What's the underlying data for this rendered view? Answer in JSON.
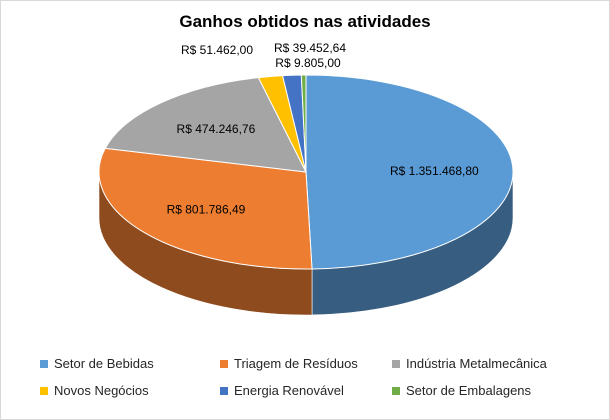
{
  "chart_data": {
    "type": "pie",
    "title": "Ganhos obtidos nas atividades",
    "legend_position": "bottom",
    "slices": [
      {
        "name": "Setor de Bebidas",
        "value": 1351468.8,
        "label": "R$ 1.351.468,80",
        "color": "#5b9bd5"
      },
      {
        "name": "Triagem de Resíduos",
        "value": 801786.49,
        "label": "R$ 801.786,49",
        "color": "#ed7d31"
      },
      {
        "name": "Indústria Metalmecânica",
        "value": 474246.76,
        "label": "R$ 474.246,76",
        "color": "#a5a5a5"
      },
      {
        "name": "Novos Negócios",
        "value": 51462.0,
        "label": "R$ 51.462,00",
        "color": "#ffc000"
      },
      {
        "name": "Energia Renovável",
        "value": 39452.64,
        "label": "R$ 39.452,64",
        "color": "#4472c4"
      },
      {
        "name": "Setor de Embalagens",
        "value": 9805.0,
        "label": "R$ 9.805,00",
        "color": "#70ad47"
      }
    ]
  }
}
